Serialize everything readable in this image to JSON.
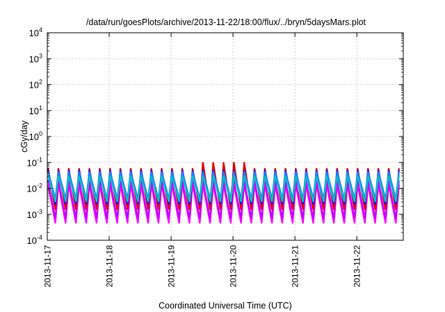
{
  "chart_data": {
    "type": "line",
    "title": "/data/run/goesPlots/archive/2013-11-22/18:00/flux/../bryn/5daysMars.plot",
    "xlabel": "Coordinated Universal Time (UTC)",
    "ylabel": "cGy/day",
    "yscale": "log",
    "ylim": [
      0.0001,
      10000
    ],
    "xlim": [
      "2013-11-17",
      "2013-11-22 18:00"
    ],
    "grid": true,
    "x_ticks": [
      "2013-11-17",
      "2013-11-18",
      "2013-11-19",
      "2013-11-20",
      "2013-11-21",
      "2013-11-22"
    ],
    "y_ticks": [
      {
        "base": "10",
        "exp": "-4",
        "value": 0.0001
      },
      {
        "base": "10",
        "exp": "-3",
        "value": 0.001
      },
      {
        "base": "10",
        "exp": "-2",
        "value": 0.01
      },
      {
        "base": "10",
        "exp": "-1",
        "value": 0.1
      },
      {
        "base": "10",
        "exp": "0",
        "value": 1
      },
      {
        "base": "10",
        "exp": "1",
        "value": 10
      },
      {
        "base": "10",
        "exp": "2",
        "value": 100
      },
      {
        "base": "10",
        "exp": "3",
        "value": 1000
      },
      {
        "base": "10",
        "exp": "4",
        "value": 10000
      }
    ],
    "cycles_per_day": 6,
    "series": [
      {
        "color": "#ff00ff",
        "peak": 0.014,
        "trough": 0.00045
      },
      {
        "color": "#c000ff",
        "peak": 0.02,
        "trough": 0.0007
      },
      {
        "color": "#e00000",
        "peak": 0.06,
        "trough": 0.0015
      },
      {
        "color": "#0000ff",
        "peak": 0.05,
        "trough": 0.0025
      },
      {
        "color": "#2080ff",
        "peak": 0.045,
        "trough": 0.004
      },
      {
        "color": "#00c0c0",
        "peak": 0.03,
        "trough": 0.003
      }
    ]
  }
}
